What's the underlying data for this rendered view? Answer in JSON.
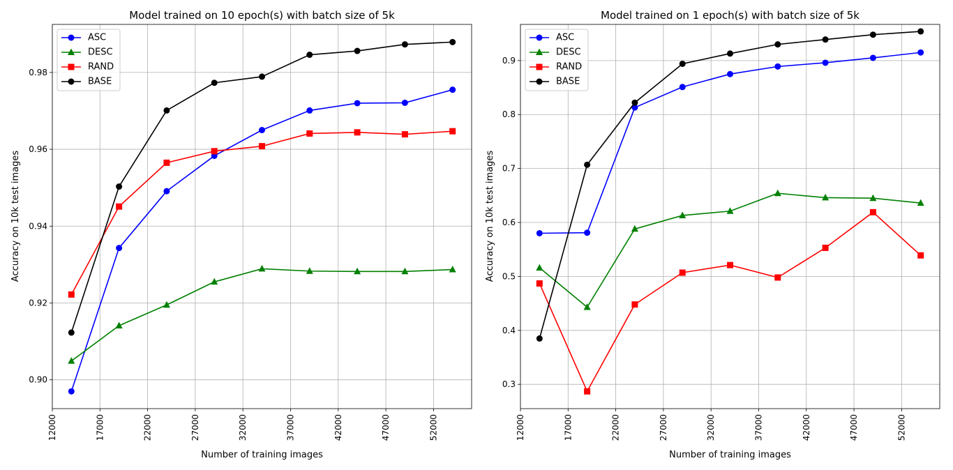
{
  "chart_data": [
    {
      "type": "line",
      "title": "Model trained on 10 epoch(s) with batch size of 5k",
      "xlabel": "Number of training images",
      "ylabel": "Accuracy on 10k test images",
      "xlim": [
        12000,
        56000
      ],
      "ylim": [
        0.8925,
        0.9925
      ],
      "xticks": [
        12000,
        17000,
        22000,
        27000,
        32000,
        37000,
        42000,
        47000,
        52000
      ],
      "yticks": [
        0.9,
        0.92,
        0.94,
        0.96,
        0.98
      ],
      "ytick_labels": [
        "0.90",
        "0.92",
        "0.94",
        "0.96",
        "0.98"
      ],
      "grid": true,
      "legend": "upper-left",
      "x": [
        14000,
        19000,
        24000,
        29000,
        34000,
        39000,
        44000,
        49000,
        54000
      ],
      "series": [
        {
          "name": "ASC",
          "color": "#0000ff",
          "marker": "circle",
          "values": [
            0.897,
            0.9343,
            0.9491,
            0.9583,
            0.965,
            0.9701,
            0.972,
            0.9721,
            0.9755
          ]
        },
        {
          "name": "DESC",
          "color": "#008000",
          "marker": "triangle",
          "values": [
            0.9049,
            0.9141,
            0.9195,
            0.9255,
            0.9289,
            0.9283,
            0.9282,
            0.9282,
            0.9287
          ]
        },
        {
          "name": "RAND",
          "color": "#ff0000",
          "marker": "square",
          "values": [
            0.9222,
            0.9451,
            0.9565,
            0.9595,
            0.9608,
            0.9641,
            0.9644,
            0.9639,
            0.9647
          ]
        },
        {
          "name": "BASE",
          "color": "#000000",
          "marker": "circle",
          "values": [
            0.9123,
            0.9503,
            0.9701,
            0.9773,
            0.9789,
            0.9846,
            0.9856,
            0.9873,
            0.9879
          ]
        }
      ]
    },
    {
      "type": "line",
      "title": "Model trained on 1 epoch(s) with batch size of 5k",
      "xlabel": "Number of training images",
      "ylabel": "Accuracy on 10k test images",
      "xlim": [
        12000,
        56000
      ],
      "ylim": [
        0.255,
        0.967
      ],
      "xticks": [
        12000,
        17000,
        22000,
        27000,
        32000,
        37000,
        42000,
        47000,
        52000
      ],
      "yticks": [
        0.3,
        0.4,
        0.5,
        0.6,
        0.7,
        0.8,
        0.9
      ],
      "ytick_labels": [
        "0.3",
        "0.4",
        "0.5",
        "0.6",
        "0.7",
        "0.8",
        "0.9"
      ],
      "grid": true,
      "legend": "upper-left",
      "x": [
        14000,
        19000,
        24000,
        29000,
        34000,
        39000,
        44000,
        49000,
        54000
      ],
      "series": [
        {
          "name": "ASC",
          "color": "#0000ff",
          "marker": "circle",
          "values": [
            0.58,
            0.581,
            0.813,
            0.851,
            0.875,
            0.889,
            0.896,
            0.905,
            0.915
          ]
        },
        {
          "name": "DESC",
          "color": "#008000",
          "marker": "triangle",
          "values": [
            0.516,
            0.443,
            0.588,
            0.613,
            0.621,
            0.654,
            0.646,
            0.645,
            0.636
          ]
        },
        {
          "name": "RAND",
          "color": "#ff0000",
          "marker": "square",
          "values": [
            0.487,
            0.287,
            0.448,
            0.507,
            0.521,
            0.498,
            0.553,
            0.619,
            0.539
          ]
        },
        {
          "name": "BASE",
          "color": "#000000",
          "marker": "circle",
          "values": [
            0.385,
            0.707,
            0.822,
            0.894,
            0.913,
            0.93,
            0.939,
            0.948,
            0.954
          ]
        }
      ]
    }
  ]
}
